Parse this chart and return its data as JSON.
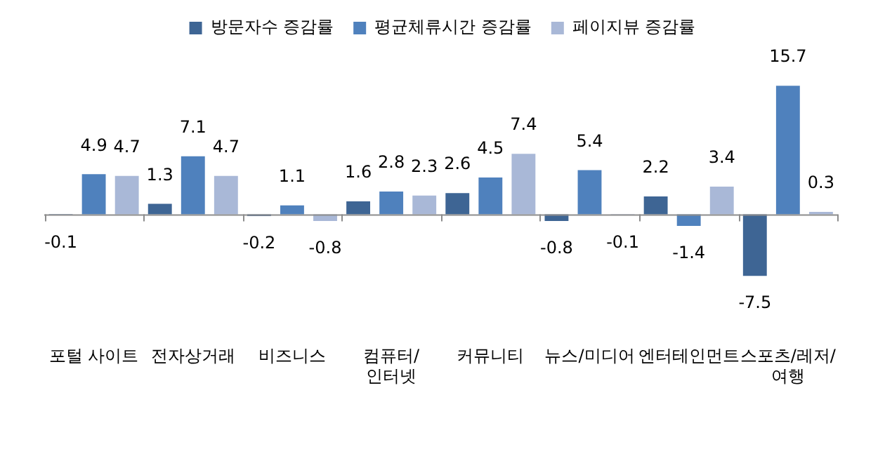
{
  "chart_data": {
    "type": "bar",
    "categories": [
      "포털 사이트",
      "전자상거래",
      "비즈니스",
      "컴퓨터/인터넷",
      "커뮤니티",
      "뉴스/미디어",
      "엔터테인먼트",
      "스포츠/레저/여행"
    ],
    "series": [
      {
        "name": "방문자수 증감률",
        "color": "#3e6594",
        "values": [
          -0.1,
          1.3,
          -0.2,
          1.6,
          2.6,
          -0.8,
          2.2,
          -7.5
        ]
      },
      {
        "name": "평균체류시간 증감률",
        "color": "#4f81bd",
        "values": [
          4.9,
          7.1,
          1.1,
          2.8,
          4.5,
          5.4,
          -1.4,
          15.7
        ]
      },
      {
        "name": "페이지뷰 증감률",
        "color": "#a9b8d7",
        "values": [
          4.7,
          4.7,
          -0.8,
          2.3,
          7.4,
          -0.1,
          3.4,
          0.3
        ]
      }
    ],
    "data_labels": true,
    "grid": false,
    "legend": "top",
    "tick_labels": "x"
  }
}
